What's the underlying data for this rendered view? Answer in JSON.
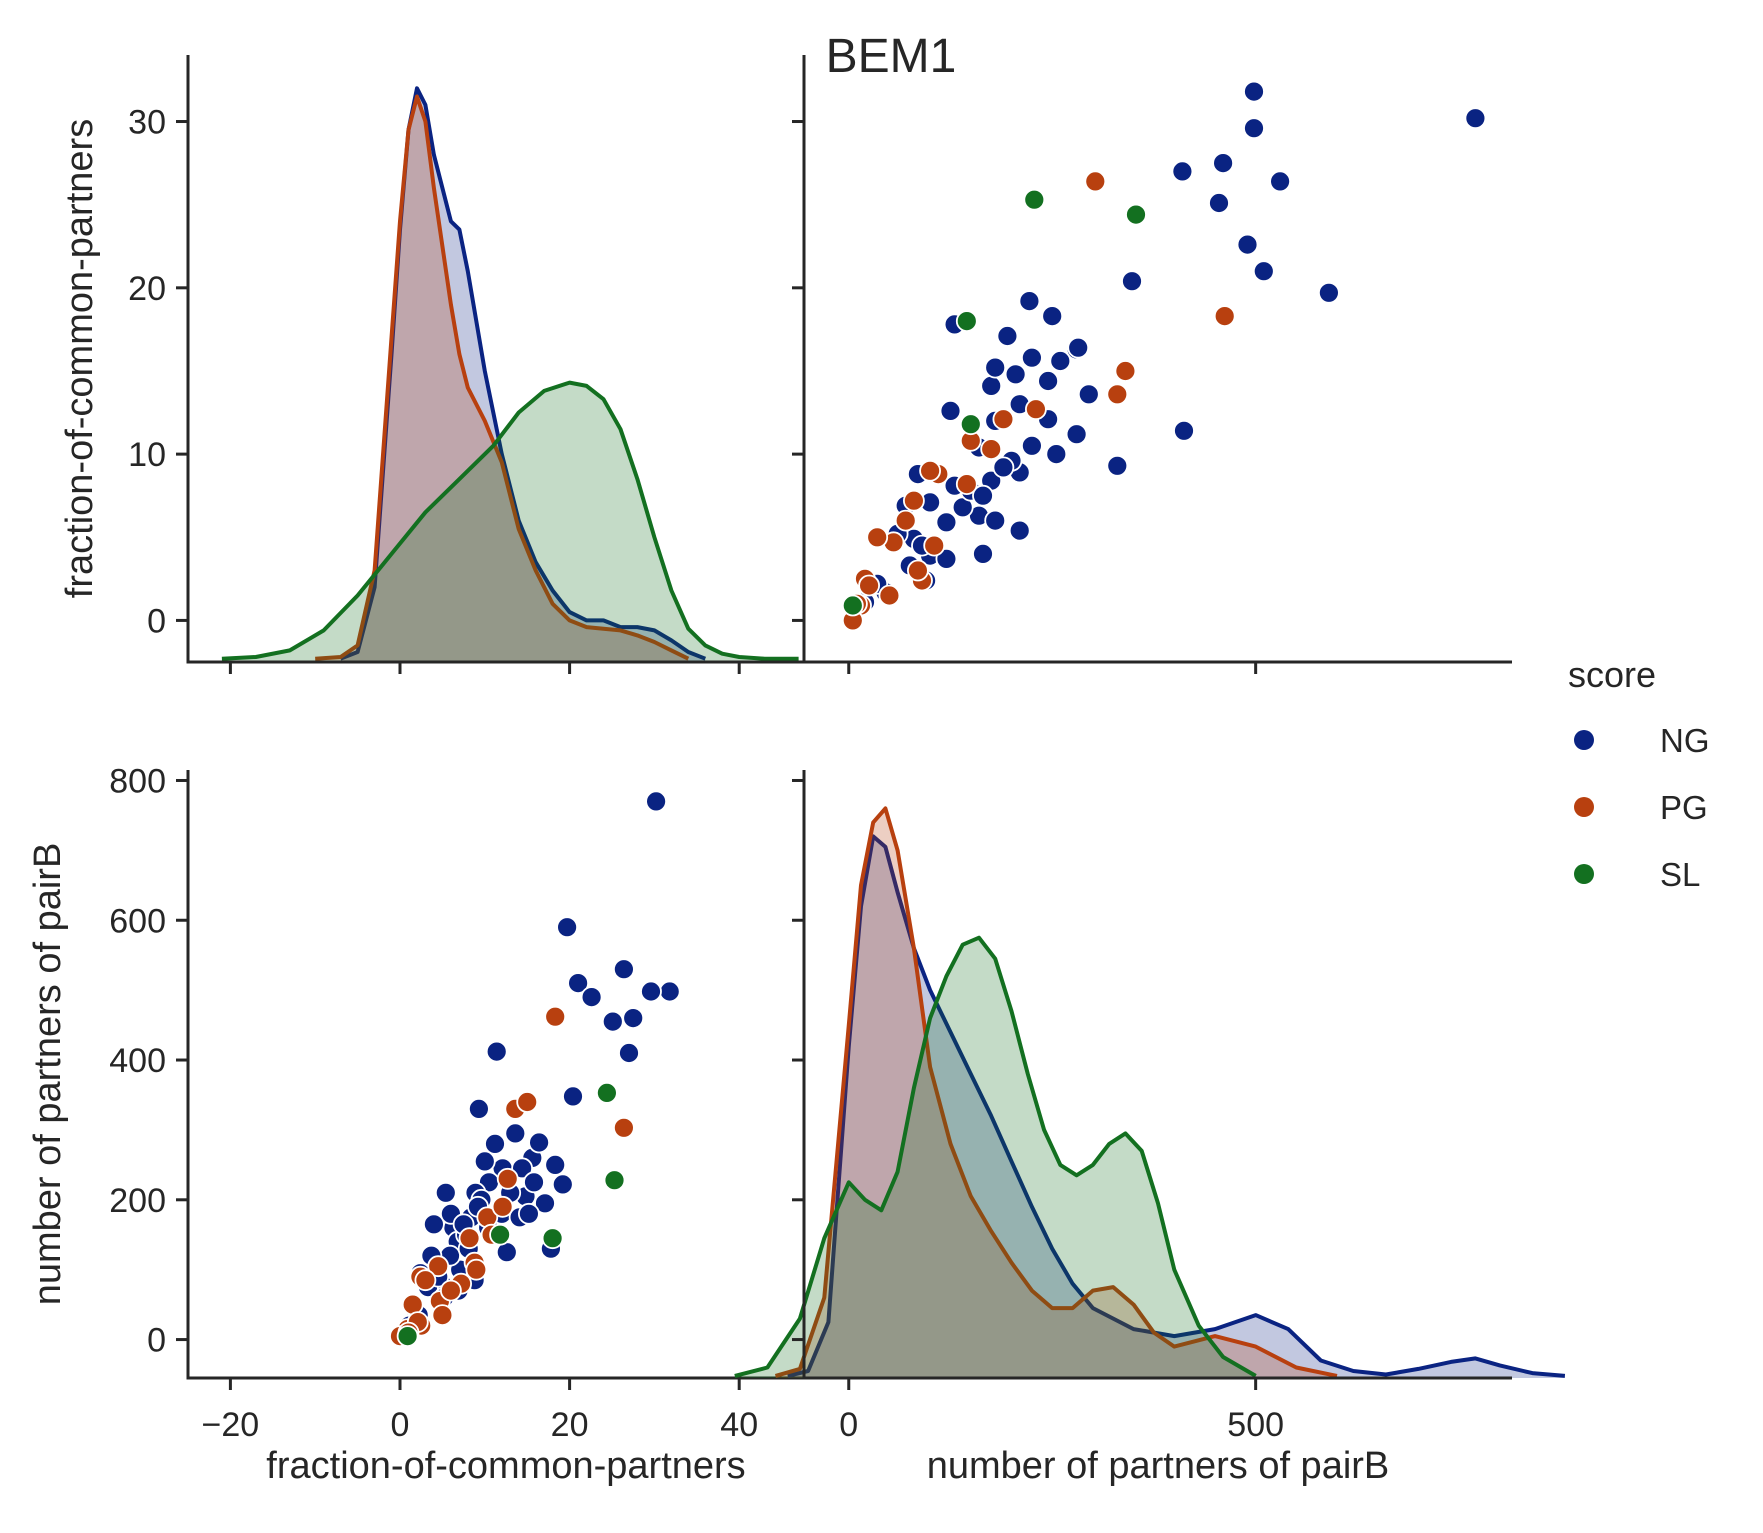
{
  "title": "BEM1",
  "colors": {
    "NG": "#0a2382",
    "PG": "#b8400f",
    "SL": "#137020",
    "axis": "#262626"
  },
  "legend": {
    "title": "score",
    "entries": [
      "NG",
      "PG",
      "SL"
    ]
  },
  "axes": {
    "x_label_fraction": "fraction-of-common-partners",
    "x_label_partners": "number of partners of pairB",
    "y_label_fraction": "fraction-of-common-partners",
    "y_label_partners": "number of partners of pairB"
  },
  "chart_data": {
    "type": "scatter",
    "kind": "pairplot",
    "title": "BEM1",
    "variables": [
      "fraction-of-common-partners",
      "number of partners of pairB"
    ],
    "hue": "score",
    "ranges": {
      "fraction-of-common-partners": [
        -25,
        50
      ],
      "number of partners of pairB": [
        -55,
        815
      ]
    },
    "ticks": {
      "fraction_x": [
        -20,
        0,
        20,
        40
      ],
      "fraction_x_labels": [
        "−20",
        "0",
        "20",
        "40"
      ],
      "fraction_y": [
        0,
        10,
        20,
        30
      ],
      "fraction_y_labels": [
        "0",
        "10",
        "20",
        "30"
      ],
      "partners_x": [
        0,
        500
      ],
      "partners_x_labels": [
        "0",
        "500"
      ],
      "partners_y": [
        0,
        200,
        400,
        600,
        800
      ],
      "partners_y_labels": [
        "0",
        "200",
        "400",
        "600",
        "800"
      ]
    },
    "kde_fraction": [
      {
        "name": "NG",
        "x": [
          -7,
          -5,
          -3,
          -1,
          0,
          1,
          2,
          3,
          4,
          5,
          6,
          7,
          8,
          9,
          10,
          12,
          14,
          16,
          18,
          20,
          22,
          24,
          26,
          28,
          30,
          32,
          34,
          36
        ],
        "y": [
          -2.3,
          -1.9,
          2,
          16,
          23.5,
          29.5,
          32,
          31,
          28,
          26,
          24,
          23.5,
          21,
          18,
          15,
          10,
          6,
          3.5,
          1.8,
          0.5,
          0,
          0,
          -0.4,
          -0.4,
          -0.6,
          -1.2,
          -1.9,
          -2.3
        ]
      },
      {
        "name": "PG",
        "x": [
          -10,
          -7,
          -5,
          -3,
          -1,
          0,
          1,
          2,
          3,
          4,
          5,
          6,
          7,
          8,
          10,
          12,
          14,
          16,
          18,
          20,
          22,
          24,
          26,
          28,
          30,
          32,
          34
        ],
        "y": [
          -2.3,
          -2.2,
          -1.5,
          3,
          17,
          24,
          29.5,
          31.5,
          30,
          26,
          22.5,
          19,
          16,
          14,
          12,
          9.5,
          5.5,
          3,
          1,
          0,
          -0.4,
          -0.5,
          -0.6,
          -0.9,
          -1.3,
          -1.8,
          -2.3
        ]
      },
      {
        "name": "SL",
        "x": [
          -21,
          -17,
          -13,
          -9,
          -5,
          -1,
          3,
          7,
          11,
          14,
          17,
          20,
          22,
          24,
          26,
          28,
          30,
          32,
          34,
          36,
          38,
          40,
          43,
          47
        ],
        "y": [
          -2.3,
          -2.2,
          -1.8,
          -0.6,
          1.5,
          4,
          6.5,
          8.5,
          10.5,
          12.5,
          13.8,
          14.3,
          14.1,
          13.3,
          11.5,
          8.5,
          5,
          1.8,
          -0.5,
          -1.5,
          -2,
          -2.2,
          -2.3,
          -2.3
        ]
      }
    ],
    "kde_partners": [
      {
        "name": "NG",
        "x": [
          -75,
          -50,
          -25,
          0,
          15,
          30,
          45,
          60,
          80,
          100,
          125,
          150,
          175,
          200,
          225,
          250,
          275,
          300,
          350,
          400,
          450,
          500,
          540,
          580,
          620,
          660,
          700,
          740,
          770,
          800,
          840,
          880
        ],
        "y": [
          -52,
          -45,
          25,
          420,
          620,
          720,
          705,
          640,
          560,
          500,
          440,
          380,
          320,
          255,
          190,
          130,
          80,
          45,
          15,
          5,
          15,
          35,
          15,
          -30,
          -45,
          -50,
          -42,
          -32,
          -27,
          -37,
          -48,
          -52
        ]
      },
      {
        "name": "PG",
        "x": [
          -90,
          -60,
          -30,
          0,
          15,
          30,
          45,
          60,
          80,
          100,
          125,
          150,
          175,
          200,
          225,
          250,
          275,
          300,
          325,
          350,
          375,
          400,
          450,
          500,
          550,
          600
        ],
        "y": [
          -52,
          -42,
          60,
          450,
          650,
          740,
          760,
          700,
          560,
          390,
          280,
          205,
          155,
          110,
          70,
          45,
          45,
          70,
          75,
          50,
          10,
          -10,
          5,
          -10,
          -40,
          -52
        ]
      },
      {
        "name": "SL",
        "x": [
          -140,
          -100,
          -60,
          -30,
          0,
          20,
          40,
          60,
          80,
          100,
          120,
          140,
          160,
          180,
          200,
          220,
          240,
          260,
          280,
          300,
          320,
          340,
          360,
          380,
          400,
          430,
          460,
          500
        ],
        "y": [
          -52,
          -40,
          30,
          145,
          225,
          200,
          185,
          240,
          360,
          460,
          520,
          565,
          575,
          545,
          470,
          380,
          300,
          250,
          235,
          250,
          280,
          295,
          270,
          195,
          100,
          20,
          -25,
          -52
        ]
      }
    ],
    "series": [
      {
        "name": "NG",
        "x": [
          30.2,
          31.8,
          25.1,
          21.0,
          22.6,
          27.0,
          27.5,
          19.7,
          26.4,
          29.6,
          20.4,
          19.2,
          16.3,
          11.4,
          9.3,
          17.8,
          13.6,
          15.6,
          16.4,
          14.8,
          11.2,
          12.1,
          14.4,
          15.8,
          17.1,
          10.5,
          12.0,
          8.9,
          9.6,
          6.3,
          8.4,
          5.4,
          4.0,
          6.8,
          7.1,
          3.9,
          2.4,
          4.9,
          3.3,
          1.7,
          2.2,
          1.1,
          0.8,
          5.9,
          7.8,
          9.2,
          10.4,
          11.8,
          13.0,
          14.1,
          6.0,
          7.5,
          8.1,
          10.0,
          3.7,
          4.5,
          5.2,
          6.9,
          8.8,
          12.6,
          18.3,
          15.2
        ],
        "y": [
          770,
          498,
          455,
          510,
          490,
          410,
          460,
          590,
          530,
          498,
          348,
          222,
          280,
          412,
          330,
          130,
          295,
          260,
          282,
          205,
          280,
          245,
          245,
          225,
          195,
          225,
          180,
          210,
          200,
          160,
          175,
          210,
          165,
          140,
          100,
          100,
          95,
          80,
          75,
          45,
          35,
          20,
          10,
          120,
          150,
          190,
          160,
          150,
          210,
          175,
          180,
          165,
          130,
          255,
          120,
          90,
          60,
          70,
          85,
          125,
          250,
          180
        ]
      },
      {
        "name": "PG",
        "x": [
          18.3,
          26.4,
          13.6,
          15.0,
          12.7,
          10.3,
          12.1,
          8.2,
          7.2,
          8.8,
          4.5,
          4.7,
          2.4,
          3.0,
          2.5,
          5.0,
          1.5,
          0.9,
          0,
          2.1,
          1.0,
          6.0,
          9.0,
          10.8
        ],
        "y": [
          462,
          303,
          330,
          340,
          230,
          175,
          190,
          145,
          80,
          110,
          105,
          55,
          90,
          85,
          20,
          35,
          50,
          15,
          5,
          25,
          10,
          70,
          100,
          150
        ]
      },
      {
        "name": "SL",
        "x": [
          24.4,
          25.3,
          18.0,
          11.8,
          0.9
        ],
        "y": [
          353,
          228,
          145,
          150,
          5
        ]
      }
    ]
  }
}
